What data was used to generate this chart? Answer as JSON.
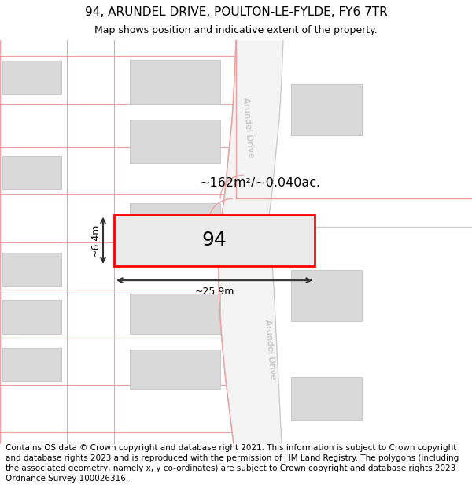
{
  "title": "94, ARUNDEL DRIVE, POULTON-LE-FYLDE, FY6 7TR",
  "subtitle": "Map shows position and indicative extent of the property.",
  "footer": "Contains OS data © Crown copyright and database right 2021. This information is subject to Crown copyright and database rights 2023 and is reproduced with the permission of\nHM Land Registry. The polygons (including the associated geometry, namely x, y co-ordinates) are subject to Crown copyright and database rights 2023 Ordnance Survey\n100026316.",
  "property_number": "94",
  "area_text": "~162m²/~0.040ac.",
  "width_text": "~25.9m",
  "height_text": "~6.4m",
  "bg_color": "#ffffff",
  "building_fill": "#d9d9d9",
  "building_edge": "#c8c8c8",
  "plot_fill": "#ebebeb",
  "plot_edge": "#ff0000",
  "grid_color": "#f0a0a0",
  "road_fill": "#f8f8f8",
  "road_edge_gray": "#cccccc",
  "road_label": "#b8b8b8",
  "dim_color": "#333333",
  "title_fs": 11,
  "subtitle_fs": 9,
  "footer_fs": 7.5
}
